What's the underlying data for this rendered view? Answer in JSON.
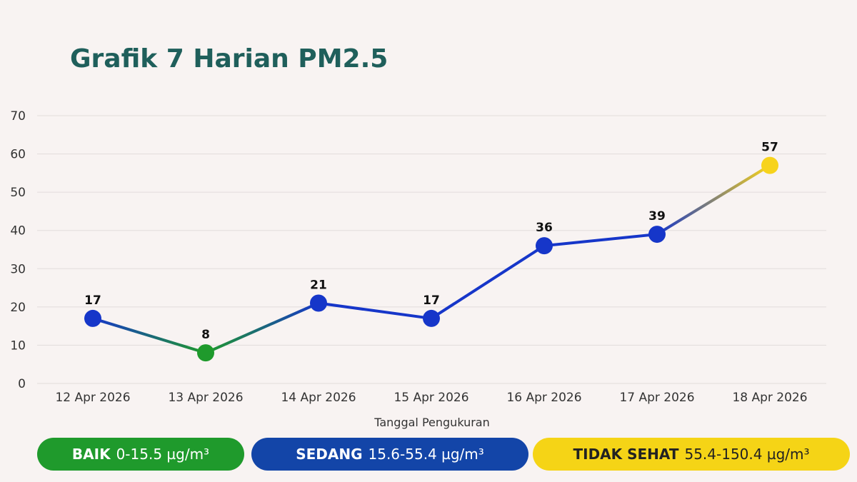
{
  "chart_data": {
    "type": "line",
    "title": "Grafik 7 Harian PM2.5",
    "xlabel": "Tanggal Pengukuran",
    "ylabel": "",
    "ylim": [
      0,
      70
    ],
    "yticks": [
      "0",
      "10",
      "20",
      "30",
      "40",
      "50",
      "60",
      "70"
    ],
    "grid": true,
    "categories": [
      "12 Apr 2026",
      "13 Apr 2026",
      "14 Apr 2026",
      "15 Apr 2026",
      "16 Apr 2026",
      "17 Apr 2026",
      "18 Apr 2026"
    ],
    "series": [
      {
        "values": [
          17,
          8,
          21,
          17,
          36,
          39,
          57
        ],
        "point_colors": [
          "#1636c9",
          "#1f9a2c",
          "#1636c9",
          "#1636c9",
          "#1636c9",
          "#1636c9",
          "#f7d31c"
        ]
      }
    ],
    "legend": [
      {
        "label": "BAIK",
        "range": "0-15.5 µg/m³",
        "color": "#1f9a2c"
      },
      {
        "label": "SEDANG",
        "range": "15.6-55.4 µg/m³",
        "color": "#1345a8"
      },
      {
        "label": "TIDAK SEHAT",
        "range": "55.4-150.4 µg/m³",
        "color": "#f5d416"
      }
    ]
  }
}
